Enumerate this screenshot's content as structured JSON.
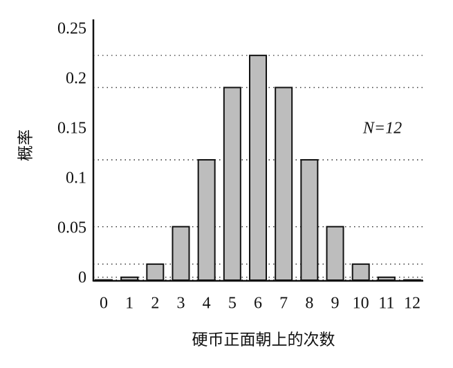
{
  "chart_data": {
    "type": "bar",
    "x_label": "硬币正面朝上的次数",
    "y_label": "概率",
    "annotation": "N=12",
    "categories": [
      "0",
      "1",
      "2",
      "3",
      "4",
      "5",
      "6",
      "7",
      "8",
      "9",
      "10",
      "11",
      "12"
    ],
    "values": [
      0.000244,
      0.00293,
      0.0161,
      0.0537,
      0.1208,
      0.1934,
      0.2256,
      0.1934,
      0.1208,
      0.0537,
      0.0161,
      0.00293,
      0.000244
    ],
    "color": "#bdbdbd",
    "ylim": [
      0,
      0.25
    ],
    "yticks": [
      0,
      0.05,
      0.1,
      0.15,
      0.2,
      0.25
    ],
    "reference_lines": true
  }
}
